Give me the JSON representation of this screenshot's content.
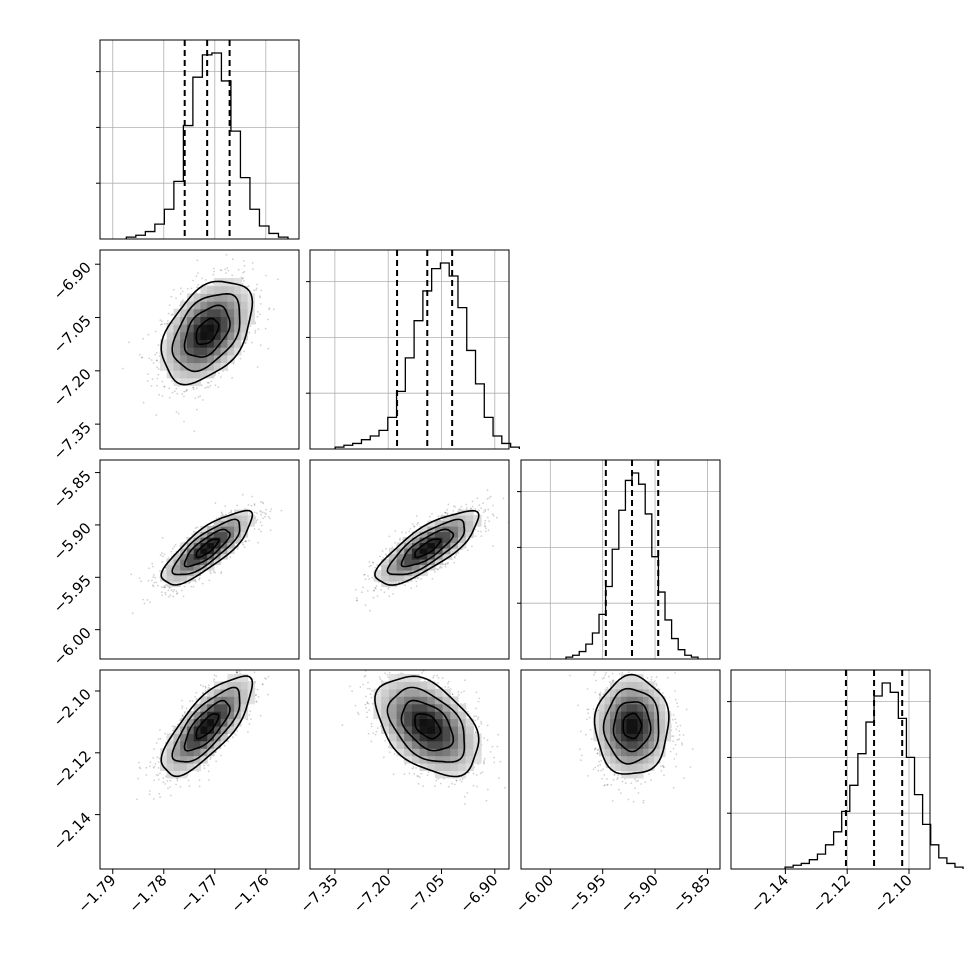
{
  "chart_data": {
    "type": "corner",
    "grid": true,
    "parameters": [
      {
        "mean": -1.7715,
        "std": 0.0044,
        "range": [
          -1.7925,
          -1.7535
        ],
        "quantiles": [
          -1.7759,
          -1.7715,
          -1.7671
        ],
        "ticks": [
          -1.79,
          -1.78,
          -1.77,
          -1.76
        ],
        "tick_labels": [
          "−1.79",
          "−1.78",
          "−1.77",
          "−1.76"
        ]
      },
      {
        "mean": -7.09,
        "std": 0.072,
        "range": [
          -7.42,
          -6.86
        ],
        "quantiles": [
          -7.175,
          -7.09,
          -7.02
        ],
        "ticks": [
          -7.35,
          -7.2,
          -7.05,
          -6.9
        ],
        "tick_labels": [
          "−7.35",
          "−7.20",
          "−7.05",
          "−6.90"
        ]
      },
      {
        "mean": -5.922,
        "std": 0.0175,
        "range": [
          -6.028,
          -5.838
        ],
        "quantiles": [
          -5.947,
          -5.922,
          -5.897
        ],
        "ticks": [
          -6.0,
          -5.95,
          -5.9,
          -5.85
        ],
        "tick_labels": [
          "−6.00",
          "−5.95",
          "−5.90",
          "−5.85"
        ]
      },
      {
        "mean": -2.1113,
        "std": 0.008,
        "range": [
          -2.1576,
          -2.0932
        ],
        "quantiles": [
          -2.1204,
          -2.1113,
          -2.1022
        ],
        "ticks": [
          -2.14,
          -2.12,
          -2.1
        ],
        "tick_labels": [
          "−2.14",
          "−2.12",
          "−2.10"
        ]
      }
    ],
    "histograms": [
      {
        "counts": [
          1,
          2,
          4,
          8,
          16,
          31,
          61,
          87,
          99,
          100,
          85,
          58,
          33,
          16,
          7,
          3,
          1
        ],
        "max": 100
      },
      {
        "counts": [
          1,
          2,
          3,
          5,
          7,
          10,
          17,
          31,
          49,
          69,
          85,
          97,
          100,
          93,
          76,
          53,
          35,
          17,
          7,
          3,
          1
        ],
        "max": 100
      },
      {
        "counts": [
          1,
          2,
          4,
          8,
          14,
          24,
          39,
          59,
          80,
          96,
          100,
          94,
          78,
          55,
          36,
          21,
          11,
          5,
          2,
          1
        ],
        "max": 100
      },
      {
        "counts": [
          1,
          2,
          3,
          5,
          8,
          13,
          20,
          31,
          45,
          62,
          79,
          93,
          100,
          95,
          81,
          60,
          40,
          24,
          13,
          6,
          3,
          1
        ],
        "max": 100
      }
    ],
    "correlations": {
      "1-0": 0.42,
      "2-0": 0.8,
      "2-1": 0.78,
      "3-0": 0.75,
      "3-1": -0.42,
      "3-2": 0.02
    },
    "contour_levels_sigma": [
      0.5,
      1.0,
      1.5,
      2.0
    ]
  }
}
